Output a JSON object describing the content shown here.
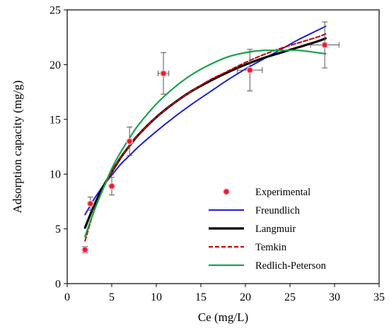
{
  "chart_data": {
    "type": "scatter",
    "xlabel": "Ce (mg/L)",
    "ylabel": "Adsorption capacity (mg/g)",
    "xlim": [
      0,
      35
    ],
    "ylim": [
      0,
      25
    ],
    "x_ticks": [
      0,
      5,
      10,
      15,
      20,
      25,
      30,
      35
    ],
    "y_ticks": [
      0,
      5,
      10,
      15,
      20,
      25
    ],
    "grid": false,
    "legend_position": "bottom-right",
    "colors": {
      "experimental": "#ee1c24",
      "experimental_highlight": "#f2b8cf",
      "freundlich": "#1f1fd6",
      "langmuir": "#000000",
      "temkin": "#c00000",
      "redlich_peterson": "#19a34a"
    },
    "series": [
      {
        "name": "Experimental",
        "kind": "points",
        "points": [
          {
            "x": 2.0,
            "y": 3.1,
            "yerr": 0.3,
            "xerr": 0
          },
          {
            "x": 2.6,
            "y": 7.3,
            "yerr": 0.6,
            "xerr": 0
          },
          {
            "x": 5.0,
            "y": 8.9,
            "yerr": 0.8,
            "xerr": 0
          },
          {
            "x": 7.0,
            "y": 13.0,
            "yerr": 1.3,
            "xerr": 0
          },
          {
            "x": 10.8,
            "y": 19.2,
            "yerr": 1.9,
            "xerr": 0.6
          },
          {
            "x": 20.5,
            "y": 19.5,
            "yerr": 1.9,
            "xerr": 1.4
          },
          {
            "x": 28.9,
            "y": 21.8,
            "yerr": 2.1,
            "xerr": 1.6
          }
        ]
      },
      {
        "name": "Freundlich",
        "kind": "line",
        "style": "solid",
        "x": [
          2,
          3,
          4,
          5,
          6,
          7,
          8,
          10,
          12,
          14,
          16,
          18,
          20,
          22,
          24,
          26,
          28,
          29
        ],
        "y": [
          6.3,
          7.7,
          8.9,
          9.9,
          10.9,
          11.7,
          12.5,
          13.9,
          15.2,
          16.4,
          17.5,
          18.6,
          19.6,
          20.5,
          21.4,
          22.3,
          23.1,
          23.5
        ]
      },
      {
        "name": "Langmuir",
        "kind": "line",
        "style": "solid",
        "x": [
          2,
          3,
          4,
          5,
          6,
          7,
          8,
          10,
          12,
          14,
          16,
          18,
          20,
          22,
          24,
          26,
          28,
          29
        ],
        "y": [
          5.1,
          7.1,
          8.8,
          10.2,
          11.5,
          12.6,
          13.6,
          15.2,
          16.5,
          17.6,
          18.5,
          19.3,
          20.0,
          20.6,
          21.1,
          21.6,
          22.1,
          22.4
        ]
      },
      {
        "name": "Temkin",
        "kind": "line",
        "style": "dashed",
        "x": [
          2,
          3,
          4,
          5,
          6,
          7,
          8,
          10,
          12,
          14,
          16,
          18,
          20,
          22,
          24,
          26,
          28,
          29
        ],
        "y": [
          3.9,
          6.6,
          8.6,
          10.2,
          11.5,
          12.6,
          13.6,
          15.2,
          16.5,
          17.6,
          18.6,
          19.4,
          20.2,
          20.9,
          21.5,
          22.0,
          22.5,
          22.8
        ]
      },
      {
        "name": "Redlich-Peterson",
        "kind": "line",
        "style": "solid",
        "x": [
          2,
          3,
          4,
          5,
          6,
          7,
          8,
          10,
          12,
          14,
          16,
          18,
          20,
          22,
          24,
          26,
          28,
          29
        ],
        "y": [
          4.3,
          6.6,
          8.6,
          10.5,
          12.0,
          13.3,
          14.5,
          16.4,
          17.9,
          19.1,
          20.0,
          20.7,
          21.1,
          21.3,
          21.3,
          21.3,
          21.1,
          21.0
        ]
      }
    ]
  }
}
